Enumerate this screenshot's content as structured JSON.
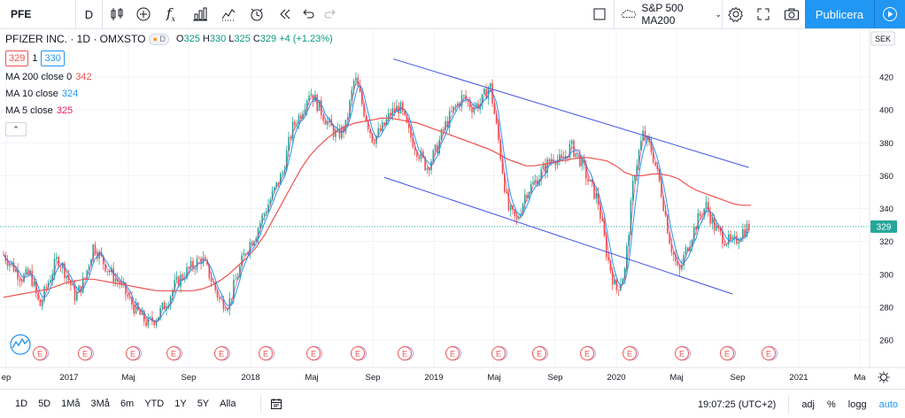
{
  "toolbar": {
    "symbol": "PFE",
    "interval": "D",
    "indicator_label": "S&P 500 MA200",
    "publish_label": "Publicera"
  },
  "legend": {
    "title": "PFIZER INC. · 1D · OMXSTO",
    "badge": "D",
    "ohlc": {
      "o_key": "O",
      "o": "325",
      "h_key": "H",
      "h": "330",
      "l_key": "L",
      "l": "325",
      "c_key": "C",
      "c": "329",
      "change": "+4 (+1.23%)"
    },
    "bid": "329",
    "spread": "1",
    "ask": "330",
    "studies": [
      {
        "label": "MA 200 close 0",
        "value": "342",
        "color": "#ef5350"
      },
      {
        "label": "MA 10 close",
        "value": "324",
        "color": "#2196f3"
      },
      {
        "label": "MA 5 close",
        "value": "325",
        "color": "#e91e63"
      }
    ]
  },
  "price_axis": {
    "currency": "SEK",
    "ticks": [
      "420",
      "400",
      "380",
      "360",
      "340",
      "320",
      "300",
      "280",
      "260"
    ],
    "last_price": "329"
  },
  "time_axis": {
    "labels": [
      "ep",
      "2017",
      "Maj",
      "Sep",
      "2018",
      "Maj",
      "Sep",
      "2019",
      "Maj",
      "Sep",
      "2020",
      "Maj",
      "Sep",
      "2021",
      "Ma"
    ]
  },
  "events": {
    "marker": "E",
    "count": 16
  },
  "bottombar": {
    "ranges": [
      "1D",
      "5D",
      "1Må",
      "3Må",
      "6m",
      "YTD",
      "1Y",
      "5Y",
      "Alla"
    ],
    "time": "19:07:25 (UTC+2)",
    "adj": "adj",
    "percent": "%",
    "log": "logg",
    "auto": "auto"
  },
  "chart_data": {
    "type": "line",
    "ylim": [
      250,
      430
    ],
    "series": [
      {
        "name": "MA 200 close 0",
        "color": "#ef5350"
      },
      {
        "name": "MA 10 close",
        "color": "#2196f3"
      },
      {
        "name": "MA 5 close",
        "color": "#e91e63"
      }
    ],
    "price_path": [
      312,
      305,
      298,
      300,
      280,
      296,
      310,
      300,
      286,
      297,
      318,
      308,
      300,
      294,
      284,
      276,
      270,
      274,
      282,
      293,
      300,
      305,
      310,
      298,
      284,
      282,
      300,
      316,
      325,
      338,
      350,
      362,
      388,
      398,
      412,
      402,
      392,
      384,
      390,
      420,
      400,
      382,
      388,
      398,
      402,
      386,
      375,
      365,
      375,
      390,
      400,
      408,
      402,
      404,
      416,
      380,
      340,
      332,
      350,
      356,
      364,
      372,
      368,
      378,
      370,
      356,
      345,
      312,
      290,
      302,
      360,
      385,
      375,
      352,
      320,
      300,
      318,
      332,
      342,
      328,
      322,
      318,
      326,
      330
    ],
    "ma200_path": [
      286,
      287,
      288,
      289,
      290,
      291,
      293,
      295,
      296,
      297,
      297,
      296,
      295,
      294,
      293,
      292,
      291,
      290,
      290,
      290,
      290,
      290,
      291,
      293,
      296,
      300,
      305,
      310,
      316,
      324,
      334,
      344,
      354,
      364,
      372,
      378,
      383,
      387,
      390,
      392,
      393,
      394,
      395,
      395,
      394,
      393,
      392,
      390,
      388,
      386,
      384,
      382,
      380,
      378,
      376,
      373,
      370,
      368,
      366,
      366,
      367,
      368,
      369,
      370,
      371,
      371,
      370,
      369,
      366,
      362,
      360,
      360,
      361,
      361,
      360,
      358,
      354,
      351,
      349,
      347,
      345,
      343,
      342,
      342
    ],
    "channel_upper": [
      [
        2018.85,
        431
      ],
      [
        2020.82,
        365
      ]
    ],
    "channel_lower": [
      [
        2018.8,
        359
      ],
      [
        2020.73,
        288
      ]
    ]
  }
}
